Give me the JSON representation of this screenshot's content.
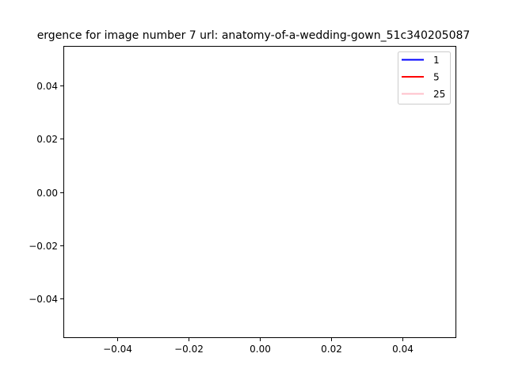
{
  "chart_data": {
    "type": "line",
    "title": "ergence for image number 7 url: anatomy-of-a-wedding-gown_51c340205087",
    "xlabel": "",
    "ylabel": "",
    "xlim": [
      -0.055,
      0.055
    ],
    "ylim": [
      -0.055,
      0.055
    ],
    "xticks": [
      -0.04,
      -0.02,
      0.0,
      0.02,
      0.04
    ],
    "xtick_labels": [
      "−0.04",
      "−0.02",
      "0.00",
      "0.02",
      "0.04"
    ],
    "yticks": [
      -0.04,
      -0.02,
      0.0,
      0.02,
      0.04
    ],
    "ytick_labels": [
      "−0.04",
      "−0.02",
      "0.00",
      "0.02",
      "0.04"
    ],
    "grid": false,
    "legend_position": "top-right",
    "series": [
      {
        "name": "1",
        "color": "#0000ff",
        "x": [],
        "y": []
      },
      {
        "name": "5",
        "color": "#ff0000",
        "x": [],
        "y": []
      },
      {
        "name": "25",
        "color": "#ffc0cb",
        "x": [],
        "y": []
      }
    ]
  }
}
